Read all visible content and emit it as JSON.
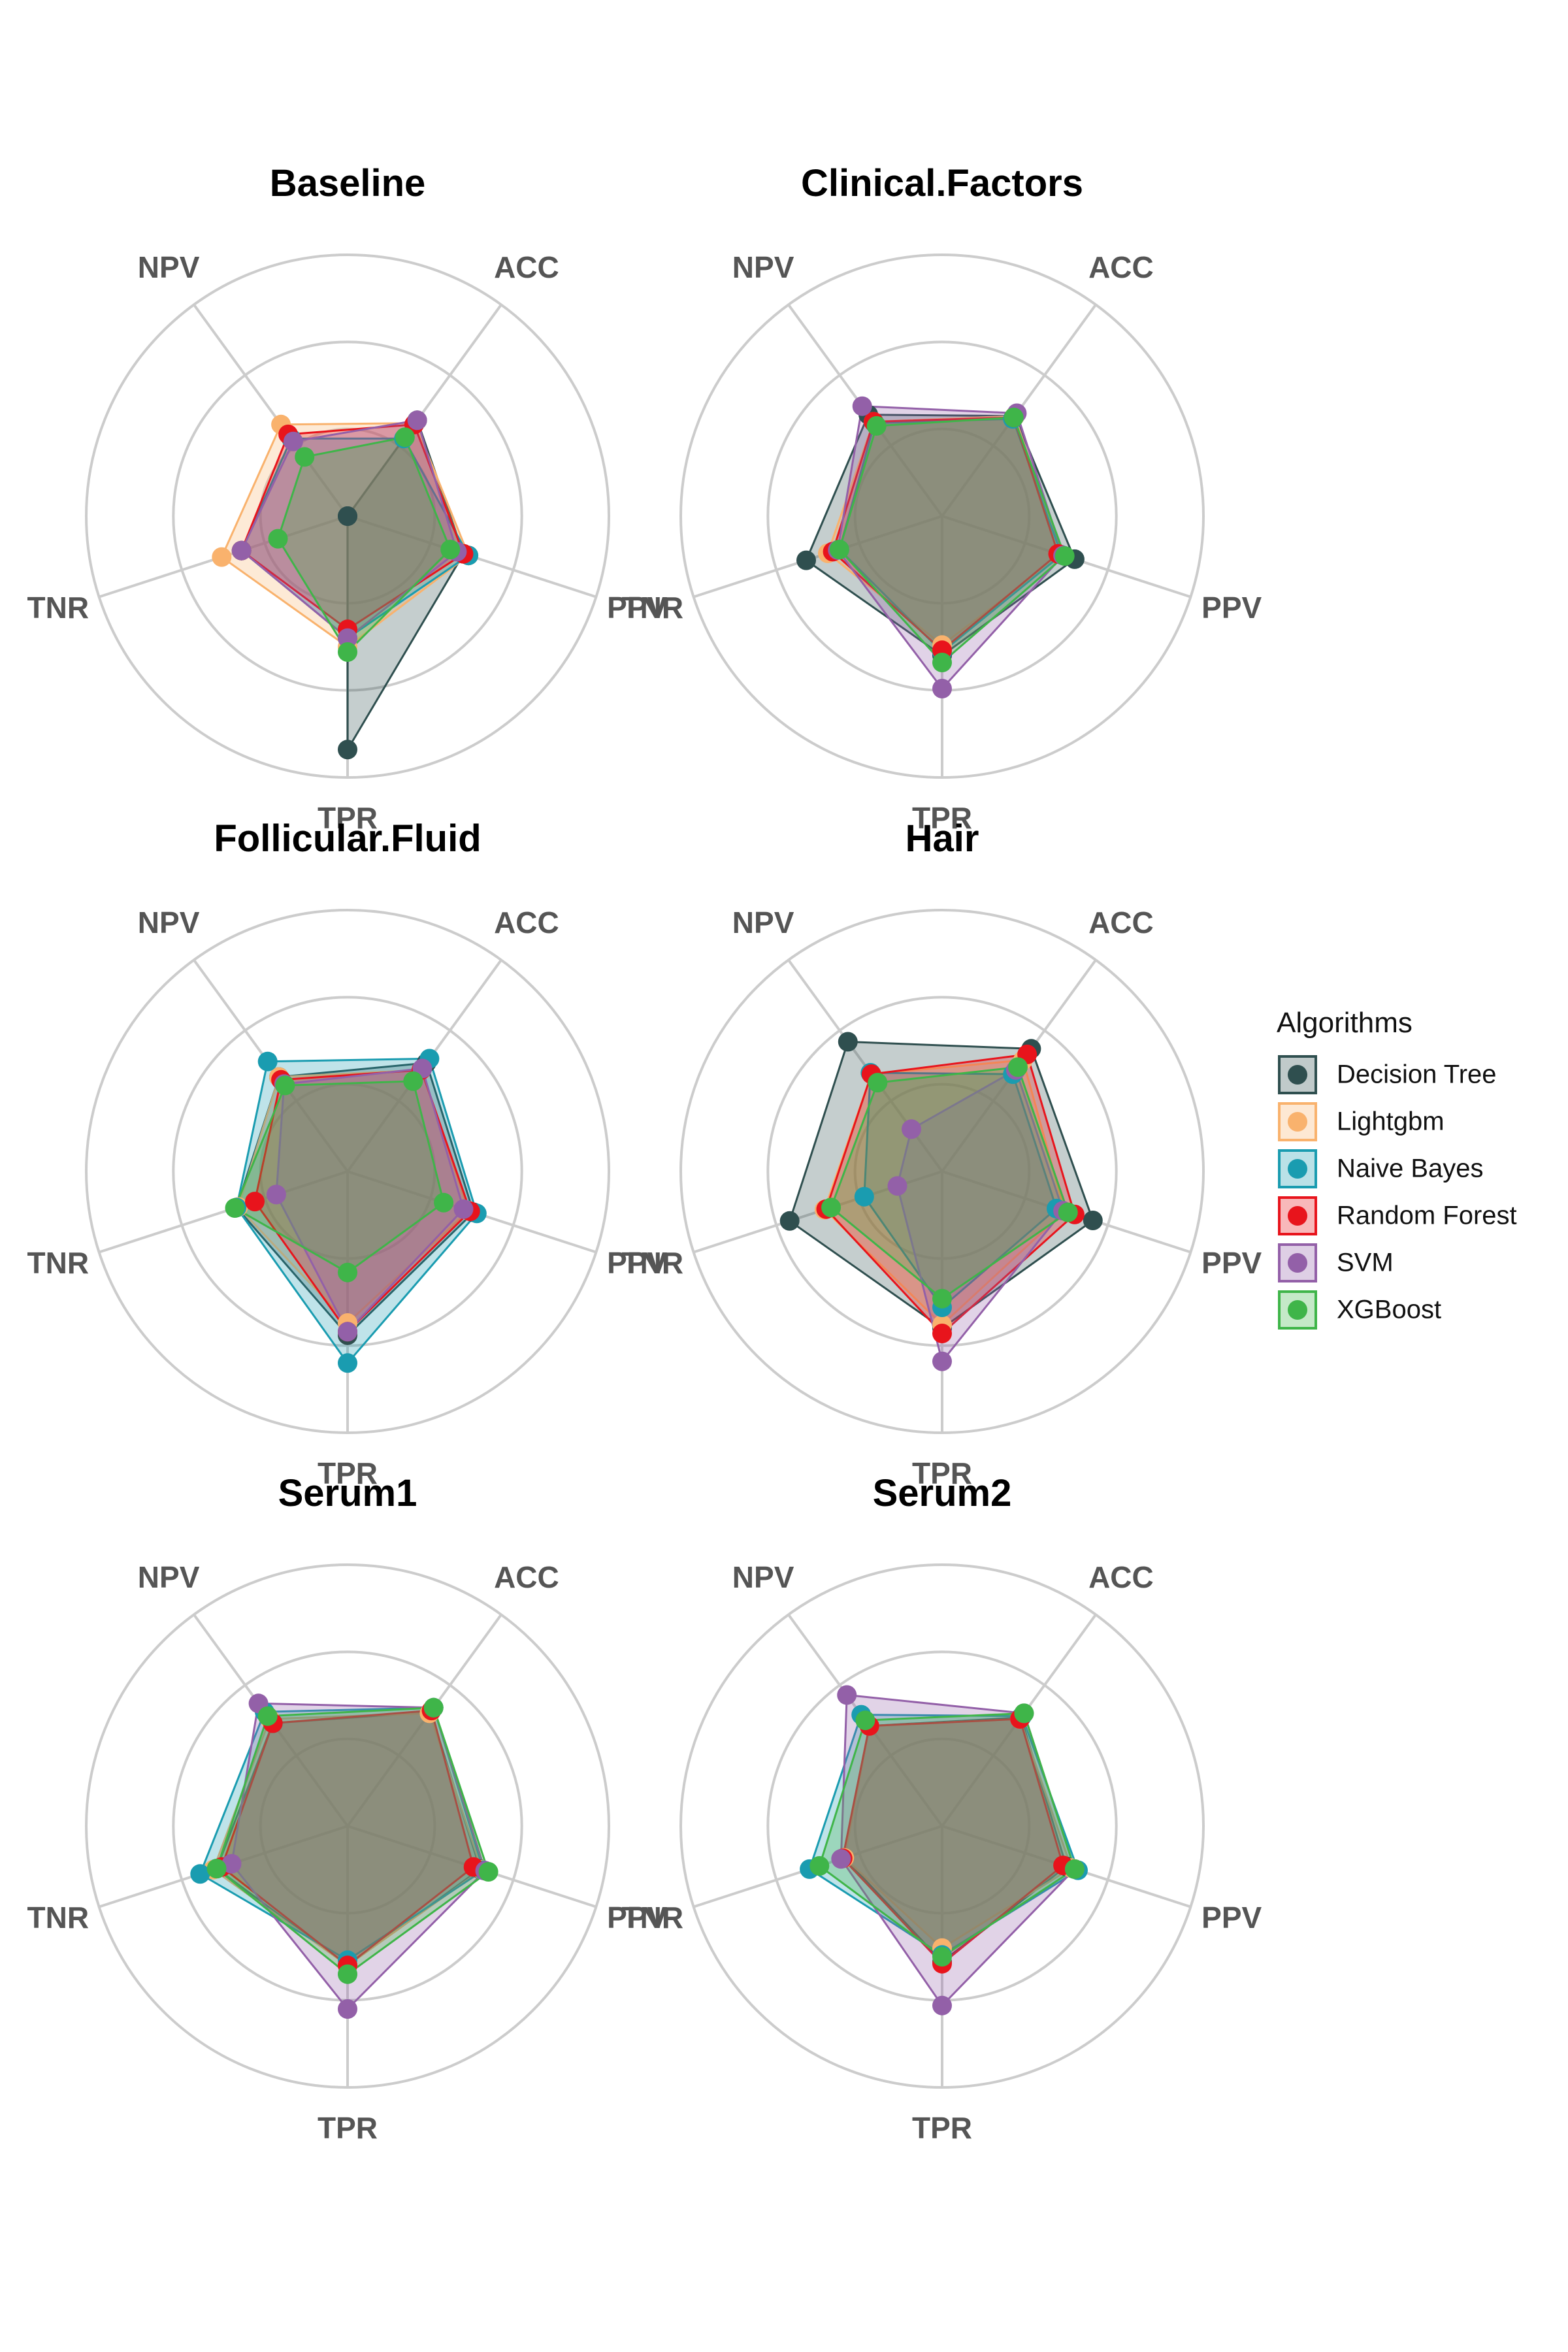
{
  "chart_data": {
    "type": "radar",
    "axes": [
      "ACC",
      "PPV",
      "TPR",
      "TNR",
      "NPV"
    ],
    "rmax": 1.5,
    "grid_rings": [
      0.5,
      1.0,
      1.5
    ],
    "legend": {
      "title": "Algorithms",
      "placement": "right"
    },
    "series": [
      {
        "name": "Decision Tree",
        "color": "#2f4f4f"
      },
      {
        "name": "Lightgbm",
        "color": "#f9b26d"
      },
      {
        "name": "Naive Bayes",
        "color": "#1a9cb0"
      },
      {
        "name": "Random Forest",
        "color": "#e8141c"
      },
      {
        "name": "SVM",
        "color": "#9360a8"
      },
      {
        "name": "XGBoost",
        "color": "#3fb549"
      }
    ],
    "panels": [
      {
        "title": "Baseline",
        "values": {
          "Decision Tree": [
            0.68,
            0.7,
            1.34,
            0.0,
            0.0
          ],
          "Lightgbm": [
            0.66,
            0.73,
            0.75,
            0.76,
            0.65
          ],
          "Naive Bayes": [
            0.55,
            0.73,
            0.7,
            0.64,
            0.55
          ],
          "Random Forest": [
            0.65,
            0.7,
            0.65,
            0.64,
            0.58
          ],
          "SVM": [
            0.68,
            0.66,
            0.7,
            0.64,
            0.53
          ],
          "XGBoost": [
            0.56,
            0.62,
            0.78,
            0.42,
            0.42
          ]
        }
      },
      {
        "title": "Clinical.Factors",
        "values": {
          "Decision Tree": [
            0.71,
            0.8,
            0.8,
            0.82,
            0.72
          ],
          "Lightgbm": [
            0.71,
            0.72,
            0.74,
            0.69,
            0.67
          ],
          "Naive Bayes": [
            0.69,
            0.72,
            0.78,
            0.62,
            0.66
          ],
          "Random Forest": [
            0.7,
            0.7,
            0.77,
            0.66,
            0.67
          ],
          "SVM": [
            0.73,
            0.73,
            0.99,
            0.63,
            0.78
          ],
          "XGBoost": [
            0.7,
            0.74,
            0.84,
            0.62,
            0.64
          ]
        }
      },
      {
        "title": "Follicular.Fluid",
        "values": {
          "Decision Tree": [
            0.77,
            0.76,
            0.94,
            0.67,
            0.67
          ],
          "Lightgbm": [
            0.72,
            0.73,
            0.87,
            0.66,
            0.67
          ],
          "Naive Bayes": [
            0.8,
            0.78,
            1.1,
            0.67,
            0.78
          ],
          "Random Forest": [
            0.72,
            0.74,
            0.92,
            0.56,
            0.65
          ],
          "SVM": [
            0.73,
            0.7,
            0.92,
            0.43,
            0.62
          ],
          "XGBoost": [
            0.64,
            0.58,
            0.58,
            0.68,
            0.61
          ]
        }
      },
      {
        "title": "Hair",
        "values": {
          "Decision Tree": [
            0.87,
            0.91,
            0.9,
            0.92,
            0.92
          ],
          "Lightgbm": [
            0.79,
            0.74,
            0.88,
            0.71,
            0.69
          ],
          "Naive Bayes": [
            0.69,
            0.69,
            0.78,
            0.47,
            0.7
          ],
          "Random Forest": [
            0.83,
            0.8,
            0.93,
            0.7,
            0.69
          ],
          "SVM": [
            0.72,
            0.73,
            1.09,
            0.27,
            0.3
          ],
          "XGBoost": [
            0.74,
            0.76,
            0.73,
            0.67,
            0.63
          ]
        }
      },
      {
        "title": "Serum1",
        "values": {
          "Decision Tree": [
            0.81,
            0.8,
            0.8,
            0.79,
            0.73
          ],
          "Lightgbm": [
            0.8,
            0.81,
            0.8,
            0.81,
            0.76
          ],
          "Naive Bayes": [
            0.84,
            0.82,
            0.77,
            0.89,
            0.81
          ],
          "Random Forest": [
            0.82,
            0.76,
            0.8,
            0.76,
            0.73
          ],
          "SVM": [
            0.84,
            0.83,
            1.05,
            0.7,
            0.87
          ],
          "XGBoost": [
            0.84,
            0.85,
            0.85,
            0.79,
            0.78
          ]
        }
      },
      {
        "title": "Serum2",
        "values": {
          "Decision Tree": [
            0.77,
            0.75,
            0.78,
            0.59,
            0.71
          ],
          "Lightgbm": [
            0.76,
            0.78,
            0.7,
            0.59,
            0.71
          ],
          "Naive Bayes": [
            0.78,
            0.82,
            0.74,
            0.8,
            0.79
          ],
          "Random Forest": [
            0.76,
            0.73,
            0.79,
            0.6,
            0.71
          ],
          "SVM": [
            0.8,
            0.8,
            1.03,
            0.61,
            0.93
          ],
          "XGBoost": [
            0.8,
            0.8,
            0.75,
            0.74,
            0.75
          ]
        }
      }
    ]
  }
}
